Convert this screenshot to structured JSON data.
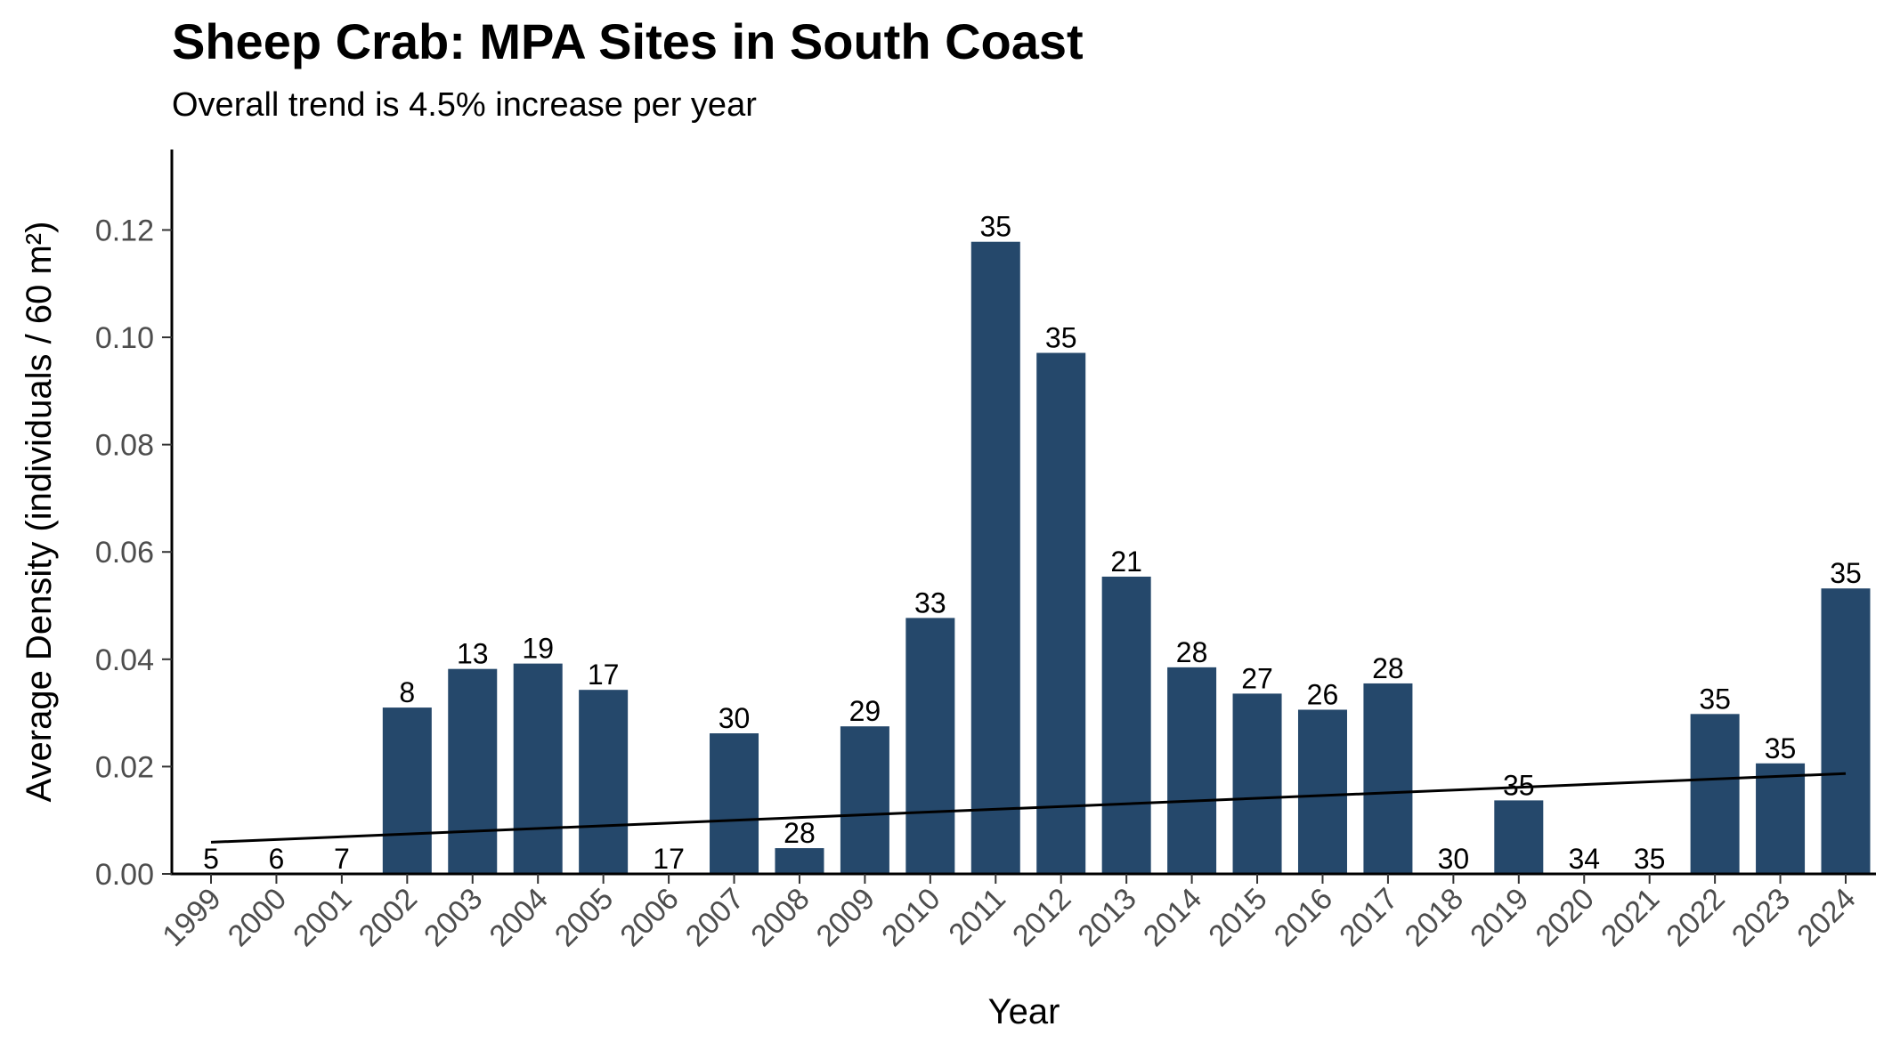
{
  "chart_data": {
    "type": "bar",
    "title": "Sheep Crab: MPA Sites in South Coast",
    "subtitle": "Overall trend is 4.5% increase per year",
    "xlabel": "Year",
    "ylabel": "Average Density (individuals / 60 m²)",
    "ylim": [
      0,
      0.135
    ],
    "yticks": [
      "0.00",
      "0.02",
      "0.04",
      "0.06",
      "0.08",
      "0.10",
      "0.12"
    ],
    "grid": false,
    "bar_color": "#25486b",
    "categories": [
      "1999",
      "2000",
      "2001",
      "2002",
      "2003",
      "2004",
      "2005",
      "2006",
      "2007",
      "2008",
      "2009",
      "2010",
      "2011",
      "2012",
      "2013",
      "2014",
      "2015",
      "2016",
      "2017",
      "2018",
      "2019",
      "2020",
      "2021",
      "2022",
      "2023",
      "2024"
    ],
    "values": [
      0,
      0,
      0,
      0.031,
      0.0382,
      0.0392,
      0.0343,
      0,
      0.0262,
      0.0048,
      0.0275,
      0.0477,
      0.1178,
      0.0971,
      0.0554,
      0.0385,
      0.0336,
      0.0306,
      0.0355,
      0,
      0.0137,
      0,
      0,
      0.0298,
      0.0206,
      0.0532
    ],
    "labels": [
      "5",
      "6",
      "7",
      "8",
      "13",
      "19",
      "17",
      "17",
      "30",
      "28",
      "29",
      "33",
      "35",
      "35",
      "21",
      "28",
      "27",
      "26",
      "28",
      "30",
      "35",
      "34",
      "35",
      "35",
      "35",
      "35"
    ],
    "trend": {
      "start": 0.0059,
      "end": 0.0187,
      "color": "#000000"
    }
  }
}
